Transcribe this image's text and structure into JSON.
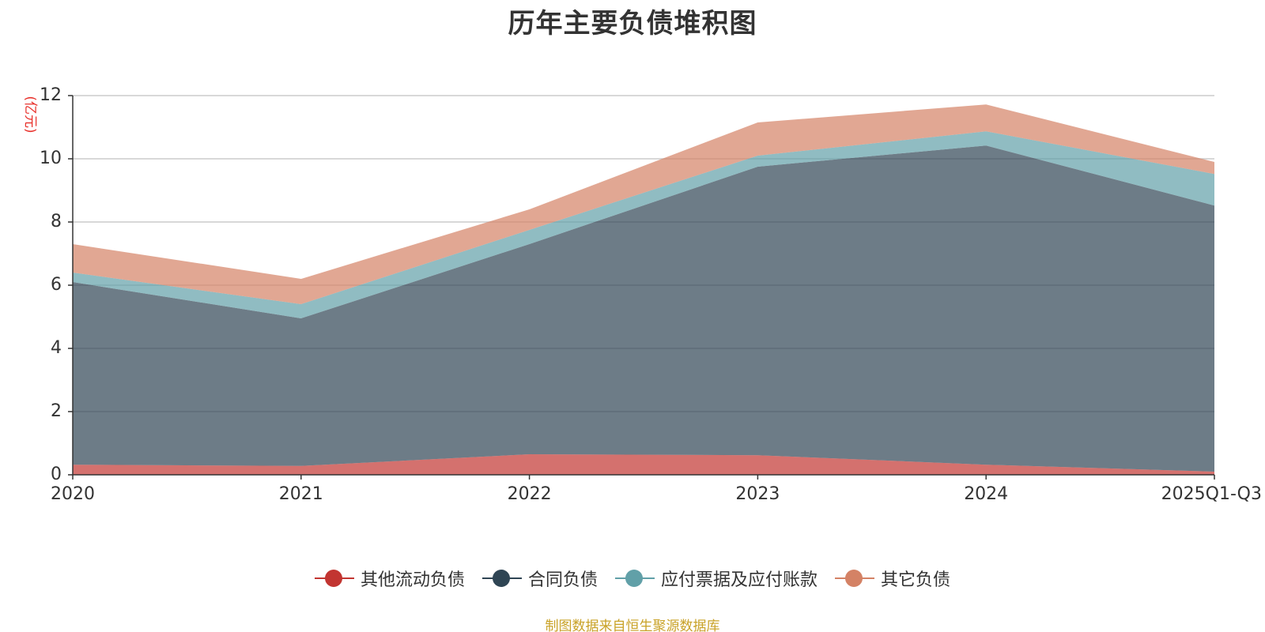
{
  "chart_data": {
    "type": "area",
    "stacked": true,
    "title": "历年主要负债堆积图",
    "ylabel": "(亿元)",
    "xlabel": "",
    "ylim": [
      0,
      12
    ],
    "yticks": [
      0,
      2,
      4,
      6,
      8,
      10,
      12
    ],
    "categories": [
      "2020",
      "2021",
      "2022",
      "2023",
      "2024",
      "2025Q1-Q3"
    ],
    "grid": true,
    "legend_position": "bottom",
    "series": [
      {
        "name": "其他流动负债",
        "color": "#c23531",
        "values": [
          0.32,
          0.28,
          0.65,
          0.62,
          0.32,
          0.1
        ]
      },
      {
        "name": "合同负债",
        "color": "#2f4554",
        "values": [
          5.78,
          4.67,
          6.65,
          9.13,
          10.1,
          8.42
        ]
      },
      {
        "name": "应付票据及应付账款",
        "color": "#61a0a8",
        "values": [
          0.3,
          0.45,
          0.45,
          0.35,
          0.45,
          1.0
        ]
      },
      {
        "name": "其它负债",
        "color": "#d48265",
        "values": [
          0.9,
          0.8,
          0.65,
          1.05,
          0.85,
          0.38
        ]
      }
    ],
    "source": "制图数据来自恒生聚源数据库"
  }
}
